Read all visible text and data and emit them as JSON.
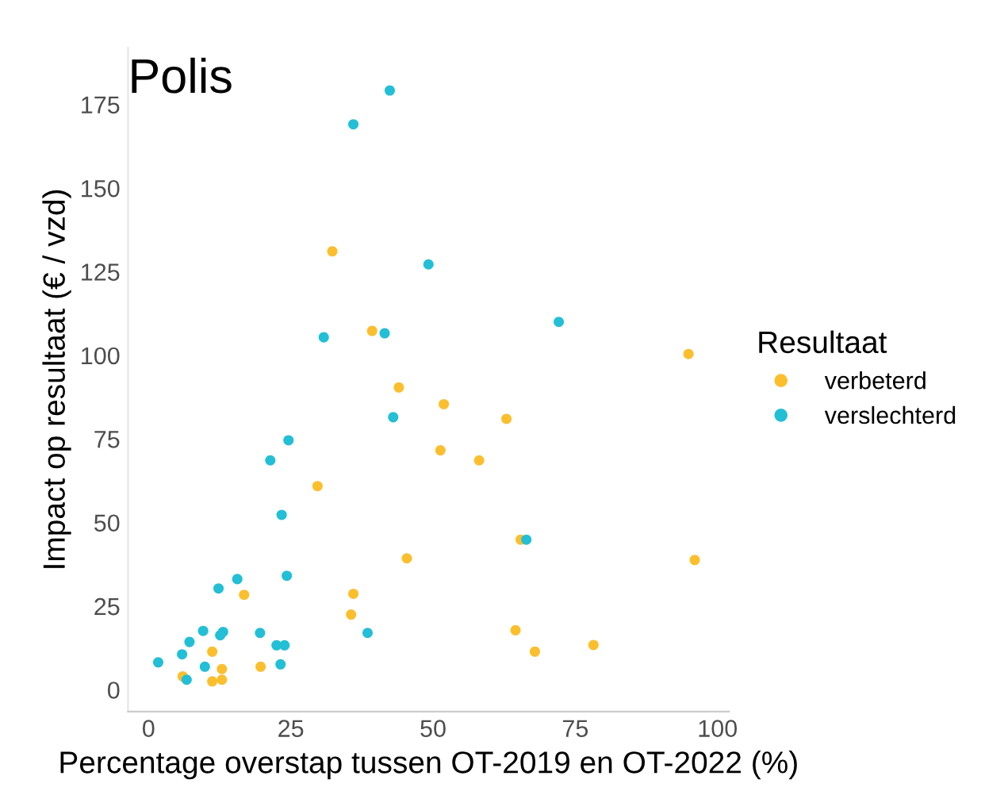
{
  "chart_data": {
    "type": "scatter",
    "title": "Polis",
    "xlabel": "Percentage overstap tussen OT-2019 en OT-2022 (%)",
    "ylabel": "Impact op resultaat (€ / vzd)",
    "legend_title": "Resultaat",
    "legend": "right",
    "marker": "circle",
    "grid": false,
    "xlim": [
      -3.6,
      102
    ],
    "ylim": [
      -6.5,
      192
    ],
    "xticks": [
      0,
      25,
      50,
      75,
      100
    ],
    "yticks": [
      0,
      25,
      50,
      75,
      100,
      125,
      150,
      175
    ],
    "series": [
      {
        "name": "verbeterd",
        "color": "#fbbf2e",
        "x": [
          32.3,
          39.3,
          44.0,
          94.9,
          51.9,
          51.3,
          29.7,
          45.4,
          16.8,
          36.0,
          35.6,
          6.0,
          11.2,
          12.9,
          11.2,
          12.9,
          19.7,
          58.1,
          62.9,
          65.4,
          96.0,
          64.5,
          67.9,
          78.2
        ],
        "values": [
          131.1,
          107.3,
          90.4,
          100.4,
          85.4,
          71.6,
          60.9,
          39.3,
          28.4,
          28.7,
          22.5,
          4.0,
          11.4,
          6.2,
          2.5,
          3.0,
          6.9,
          68.6,
          81.0,
          44.9,
          38.8,
          17.8,
          11.4,
          13.4
        ]
      },
      {
        "name": "verslechterd",
        "color": "#22bfd6",
        "x": [
          42.4,
          36.0,
          49.2,
          72.1,
          30.8,
          41.5,
          43.0,
          24.6,
          21.4,
          23.4,
          24.3,
          15.6,
          12.3,
          38.5,
          1.7,
          5.9,
          7.2,
          9.6,
          13.1,
          12.6,
          19.6,
          22.5,
          23.9,
          23.2,
          9.9,
          6.7,
          66.4
        ],
        "values": [
          179.2,
          169.1,
          127.2,
          110.0,
          105.4,
          106.6,
          81.5,
          74.6,
          68.6,
          52.3,
          34.1,
          33.1,
          30.3,
          17.0,
          8.2,
          10.6,
          14.3,
          17.6,
          17.3,
          16.3,
          17.0,
          13.3,
          13.3,
          7.6,
          6.9,
          3.0,
          44.9
        ]
      }
    ]
  }
}
